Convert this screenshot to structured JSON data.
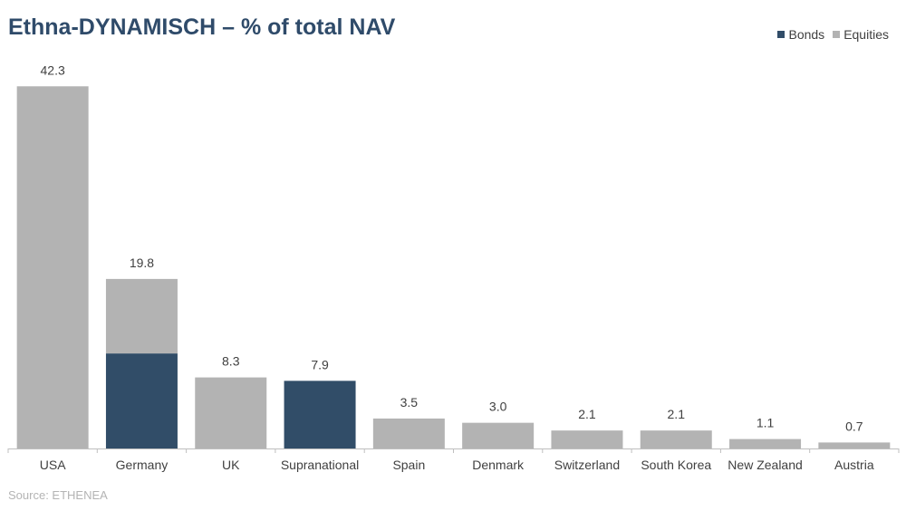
{
  "title": "Ethna-DYNAMISCH – % of total NAV",
  "source": "Source: ETHENEA",
  "colors": {
    "bonds": "#314d68",
    "equities": "#b3b3b3",
    "axis": "#bfbfbf",
    "text": "#404040"
  },
  "chart_data": {
    "type": "bar",
    "stacked": true,
    "title": "Ethna-DYNAMISCH – % of total NAV",
    "categories": [
      "USA",
      "Germany",
      "UK",
      "Supranational",
      "Spain",
      "Denmark",
      "Switzerland",
      "South Korea",
      "New Zealand",
      "Austria"
    ],
    "series": [
      {
        "name": "Bonds",
        "values": [
          0,
          11.1,
          0,
          7.9,
          0,
          0,
          0,
          0,
          0,
          0
        ]
      },
      {
        "name": "Equities",
        "values": [
          42.3,
          8.7,
          8.3,
          0,
          3.5,
          3.0,
          2.1,
          2.1,
          1.1,
          0.7
        ]
      }
    ],
    "totals": [
      "42.3",
      "19.8",
      "8.3",
      "7.9",
      "3.5",
      "3.0",
      "2.1",
      "2.1",
      "1.1",
      "0.7"
    ],
    "legend_position": "top-right",
    "grid": false
  }
}
